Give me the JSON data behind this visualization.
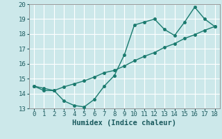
{
  "xlabel": "Humidex (Indice chaleur)",
  "ylabel": "",
  "bg_color": "#cce8ea",
  "grid_color": "#ffffff",
  "line_color": "#1a7a6e",
  "x_data": [
    0,
    1,
    2,
    3,
    4,
    5,
    6,
    7,
    8,
    9,
    10,
    11,
    12,
    13,
    14,
    15,
    16,
    17,
    18
  ],
  "y_curve": [
    14.5,
    14.2,
    14.2,
    13.5,
    13.2,
    13.1,
    13.6,
    14.5,
    15.2,
    16.6,
    18.6,
    18.8,
    19.0,
    18.3,
    17.9,
    18.8,
    19.8,
    19.0,
    18.5
  ],
  "y_line": [
    14.5,
    14.35,
    14.2,
    14.45,
    14.65,
    14.85,
    15.1,
    15.4,
    15.55,
    15.85,
    16.2,
    16.5,
    16.75,
    17.1,
    17.35,
    17.7,
    17.95,
    18.25,
    18.5
  ],
  "ylim": [
    13.0,
    20.0
  ],
  "xlim": [
    -0.5,
    18.5
  ],
  "yticks": [
    13,
    14,
    15,
    16,
    17,
    18,
    19,
    20
  ],
  "xticks": [
    0,
    1,
    2,
    3,
    4,
    5,
    6,
    7,
    8,
    9,
    10,
    11,
    12,
    13,
    14,
    15,
    16,
    17,
    18
  ]
}
